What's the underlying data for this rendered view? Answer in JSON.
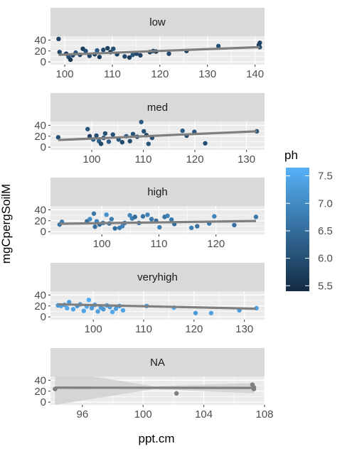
{
  "chart_data": {
    "type": "scatter",
    "xlabel": "ppt.cm",
    "ylabel": "mgCpergSoilM",
    "legend": {
      "title": "ph",
      "position": "right",
      "range": [
        5.4,
        7.65
      ],
      "ticks": [
        "7.5",
        "7.0",
        "6.5",
        "6.0",
        "5.5"
      ],
      "tick_values": [
        7.5,
        7.0,
        6.5,
        6.0,
        5.5
      ],
      "low_color": "#132B43",
      "high_color": "#56B1F7"
    },
    "colors": {
      "panel_background": "#EBEBEB",
      "strip_background": "#D9D9D9",
      "grid": "#FFFFFF",
      "trend_line": "#7F7F7F",
      "ribbon": "#D0D0D0",
      "na_point": "#7F7F7F"
    },
    "ylim": [
      -5,
      47
    ],
    "y_ticks": [
      "0",
      "20",
      "40"
    ],
    "y_tick_values": [
      0,
      20,
      40
    ],
    "facets": [
      {
        "strip": "low",
        "xlim": [
          97,
          142
        ],
        "x_ticks": [
          "100",
          "110",
          "120",
          "130",
          "140"
        ],
        "x_tick_values": [
          100,
          110,
          120,
          130,
          140
        ],
        "trend": {
          "x": [
            98.7,
            141
          ],
          "y": [
            13,
            27
          ]
        },
        "points": [
          {
            "x": 98.7,
            "y": 42,
            "ph": 5.8
          },
          {
            "x": 98.9,
            "y": 18,
            "ph": 5.9
          },
          {
            "x": 100.3,
            "y": 15,
            "ph": 5.7
          },
          {
            "x": 100.8,
            "y": 9,
            "ph": 6.0
          },
          {
            "x": 101.2,
            "y": 4,
            "ph": 5.6
          },
          {
            "x": 101.7,
            "y": 12,
            "ph": 5.9
          },
          {
            "x": 102.3,
            "y": 17,
            "ph": 6.1
          },
          {
            "x": 103.2,
            "y": 13,
            "ph": 5.8
          },
          {
            "x": 103.8,
            "y": 24,
            "ph": 5.7
          },
          {
            "x": 104.4,
            "y": 20,
            "ph": 6.0
          },
          {
            "x": 105.2,
            "y": 11,
            "ph": 5.9
          },
          {
            "x": 106.3,
            "y": 14,
            "ph": 5.8
          },
          {
            "x": 106.8,
            "y": 21,
            "ph": 6.2
          },
          {
            "x": 107.3,
            "y": 9,
            "ph": 5.7
          },
          {
            "x": 108.1,
            "y": 22,
            "ph": 5.9
          },
          {
            "x": 109.0,
            "y": 25,
            "ph": 5.8
          },
          {
            "x": 109.6,
            "y": 18,
            "ph": 5.6
          },
          {
            "x": 110.2,
            "y": 24,
            "ph": 6.0
          },
          {
            "x": 111.0,
            "y": 14,
            "ph": 5.8
          },
          {
            "x": 112.6,
            "y": 10,
            "ph": 5.9
          },
          {
            "x": 113.6,
            "y": 8,
            "ph": 5.7
          },
          {
            "x": 114.3,
            "y": 13,
            "ph": 6.1
          },
          {
            "x": 115.1,
            "y": 15,
            "ph": 5.9
          },
          {
            "x": 115.9,
            "y": 12,
            "ph": 5.8
          },
          {
            "x": 117.9,
            "y": 18,
            "ph": 5.7
          },
          {
            "x": 118.6,
            "y": 20,
            "ph": 6.0
          },
          {
            "x": 119.2,
            "y": 19,
            "ph": 5.6
          },
          {
            "x": 121.9,
            "y": 15,
            "ph": 5.9
          },
          {
            "x": 125.6,
            "y": 20,
            "ph": 5.8
          },
          {
            "x": 132.3,
            "y": 29,
            "ph": 6.0
          },
          {
            "x": 140.8,
            "y": 31,
            "ph": 5.7
          },
          {
            "x": 141.0,
            "y": 35,
            "ph": 5.8
          },
          {
            "x": 141.0,
            "y": 27,
            "ph": 5.9
          }
        ]
      },
      {
        "strip": "med",
        "xlim": [
          92,
          133.5
        ],
        "x_ticks": [
          "100",
          "110",
          "120",
          "130"
        ],
        "x_tick_values": [
          100,
          110,
          120,
          130
        ],
        "trend": {
          "x": [
            93.5,
            132
          ],
          "y": [
            13,
            29
          ]
        },
        "points": [
          {
            "x": 93.5,
            "y": 18,
            "ph": 6.0
          },
          {
            "x": 99.2,
            "y": 33,
            "ph": 6.1
          },
          {
            "x": 99.6,
            "y": 20,
            "ph": 5.8
          },
          {
            "x": 100.3,
            "y": 14,
            "ph": 6.2
          },
          {
            "x": 100.9,
            "y": 21,
            "ph": 6.0
          },
          {
            "x": 101.4,
            "y": 11,
            "ph": 6.3
          },
          {
            "x": 101.8,
            "y": 6,
            "ph": 5.9
          },
          {
            "x": 102.3,
            "y": 17,
            "ph": 6.1
          },
          {
            "x": 102.6,
            "y": 25,
            "ph": 6.0
          },
          {
            "x": 103.3,
            "y": 10,
            "ph": 6.2
          },
          {
            "x": 104.1,
            "y": 23,
            "ph": 6.0
          },
          {
            "x": 105.2,
            "y": 14,
            "ph": 6.1
          },
          {
            "x": 105.9,
            "y": 9,
            "ph": 5.9
          },
          {
            "x": 106.7,
            "y": 20,
            "ph": 6.2
          },
          {
            "x": 107.4,
            "y": 11,
            "ph": 6.0
          },
          {
            "x": 108.0,
            "y": 24,
            "ph": 6.1
          },
          {
            "x": 108.8,
            "y": 19,
            "ph": 6.0
          },
          {
            "x": 109.6,
            "y": 46,
            "ph": 6.2
          },
          {
            "x": 110.1,
            "y": 29,
            "ph": 6.0
          },
          {
            "x": 110.6,
            "y": 22,
            "ph": 5.9
          },
          {
            "x": 111.0,
            "y": 6,
            "ph": 6.1
          },
          {
            "x": 111.7,
            "y": 17,
            "ph": 6.0
          },
          {
            "x": 117.6,
            "y": 30,
            "ph": 6.2
          },
          {
            "x": 118.4,
            "y": 21,
            "ph": 6.0
          },
          {
            "x": 119.9,
            "y": 28,
            "ph": 6.1
          },
          {
            "x": 122.0,
            "y": 7,
            "ph": 6.0
          },
          {
            "x": 132.0,
            "y": 29,
            "ph": 6.1
          }
        ]
      },
      {
        "strip": "high",
        "xlim": [
          91,
          128.5
        ],
        "x_ticks": [
          "100",
          "110",
          "120"
        ],
        "x_tick_values": [
          100,
          110,
          120
        ],
        "trend": {
          "x": [
            92.6,
            127
          ],
          "y": [
            14.5,
            19.5
          ]
        },
        "points": [
          {
            "x": 92.6,
            "y": 13,
            "ph": 6.6
          },
          {
            "x": 93.0,
            "y": 18,
            "ph": 6.8
          },
          {
            "x": 97.4,
            "y": 19,
            "ph": 6.5
          },
          {
            "x": 97.9,
            "y": 23,
            "ph": 7.0
          },
          {
            "x": 98.6,
            "y": 33,
            "ph": 6.7
          },
          {
            "x": 98.8,
            "y": 9,
            "ph": 6.6
          },
          {
            "x": 99.1,
            "y": 19,
            "ph": 6.9
          },
          {
            "x": 99.6,
            "y": 13,
            "ph": 6.5
          },
          {
            "x": 100.2,
            "y": 16,
            "ph": 6.7
          },
          {
            "x": 100.8,
            "y": 31,
            "ph": 7.1
          },
          {
            "x": 101.3,
            "y": 15,
            "ph": 6.6
          },
          {
            "x": 101.7,
            "y": 23,
            "ph": 6.8
          },
          {
            "x": 102.3,
            "y": 6,
            "ph": 6.5
          },
          {
            "x": 103.1,
            "y": 7,
            "ph": 6.7
          },
          {
            "x": 103.6,
            "y": 10,
            "ph": 6.9
          },
          {
            "x": 104.0,
            "y": 16,
            "ph": 6.6
          },
          {
            "x": 104.9,
            "y": 30,
            "ph": 7.0
          },
          {
            "x": 105.3,
            "y": 24,
            "ph": 6.8
          },
          {
            "x": 105.8,
            "y": 27,
            "ph": 6.5
          },
          {
            "x": 106.5,
            "y": 16,
            "ph": 6.7
          },
          {
            "x": 107.2,
            "y": 28,
            "ph": 6.6
          },
          {
            "x": 108.0,
            "y": 31,
            "ph": 6.9
          },
          {
            "x": 108.7,
            "y": 23,
            "ph": 6.7
          },
          {
            "x": 109.5,
            "y": 20,
            "ph": 6.5
          },
          {
            "x": 110.1,
            "y": 8,
            "ph": 6.8
          },
          {
            "x": 111.0,
            "y": 27,
            "ph": 6.6
          },
          {
            "x": 111.5,
            "y": 29,
            "ph": 6.9
          },
          {
            "x": 112.2,
            "y": 22,
            "ph": 6.7
          },
          {
            "x": 112.7,
            "y": 14,
            "ph": 6.5
          },
          {
            "x": 115.7,
            "y": 7,
            "ph": 6.8
          },
          {
            "x": 116.7,
            "y": 10,
            "ph": 6.6
          },
          {
            "x": 118.8,
            "y": 15,
            "ph": 6.7
          },
          {
            "x": 119.7,
            "y": 28,
            "ph": 6.9
          },
          {
            "x": 123.2,
            "y": 12,
            "ph": 6.6
          },
          {
            "x": 127.0,
            "y": 27,
            "ph": 6.7
          }
        ]
      },
      {
        "strip": "veryhigh",
        "xlim": [
          91.5,
          134
        ],
        "x_ticks": [
          "100",
          "110",
          "120",
          "130"
        ],
        "x_tick_values": [
          100,
          110,
          120,
          130
        ],
        "trend": {
          "x": [
            93,
            132.3
          ],
          "y": [
            23,
            15
          ]
        },
        "points": [
          {
            "x": 93.0,
            "y": 21,
            "ph": 7.2
          },
          {
            "x": 93.6,
            "y": 20,
            "ph": 7.4
          },
          {
            "x": 94.3,
            "y": 22,
            "ph": 7.3
          },
          {
            "x": 94.8,
            "y": 16,
            "ph": 7.5
          },
          {
            "x": 95.2,
            "y": 27,
            "ph": 7.3
          },
          {
            "x": 96.0,
            "y": 14,
            "ph": 7.4
          },
          {
            "x": 96.8,
            "y": 20,
            "ph": 7.2
          },
          {
            "x": 97.4,
            "y": 23,
            "ph": 7.3
          },
          {
            "x": 98.1,
            "y": 11,
            "ph": 7.4
          },
          {
            "x": 98.7,
            "y": 19,
            "ph": 7.5
          },
          {
            "x": 99.1,
            "y": 31,
            "ph": 7.6
          },
          {
            "x": 99.7,
            "y": 16,
            "ph": 7.3
          },
          {
            "x": 100.3,
            "y": 22,
            "ph": 7.2
          },
          {
            "x": 100.9,
            "y": 10,
            "ph": 7.4
          },
          {
            "x": 101.5,
            "y": 17,
            "ph": 7.3
          },
          {
            "x": 102.0,
            "y": 14,
            "ph": 7.2
          },
          {
            "x": 102.7,
            "y": 21,
            "ph": 7.4
          },
          {
            "x": 103.3,
            "y": 18,
            "ph": 7.3
          },
          {
            "x": 103.8,
            "y": 9,
            "ph": 7.5
          },
          {
            "x": 104.5,
            "y": 15,
            "ph": 7.3
          },
          {
            "x": 105.2,
            "y": 20,
            "ph": 7.2
          },
          {
            "x": 105.9,
            "y": 12,
            "ph": 7.4
          },
          {
            "x": 110.6,
            "y": 20,
            "ph": 7.3
          },
          {
            "x": 116.0,
            "y": 17,
            "ph": 7.5
          },
          {
            "x": 120.3,
            "y": 7,
            "ph": 7.3
          },
          {
            "x": 123.4,
            "y": 7,
            "ph": 7.4
          },
          {
            "x": 129.0,
            "y": 12,
            "ph": 7.3
          },
          {
            "x": 132.4,
            "y": 16,
            "ph": 7.4
          }
        ]
      },
      {
        "strip": "NA",
        "xlim": [
          93.9,
          108
        ],
        "x_ticks": [
          "96",
          "100",
          "104",
          "108"
        ],
        "x_tick_values": [
          96,
          100,
          104,
          108
        ],
        "trend": {
          "x": [
            94.2,
            107.3
          ],
          "y": [
            26.5,
            26
          ]
        },
        "ribbon": {
          "x": [
            94.2,
            100.7,
            107.3
          ],
          "upper": [
            58,
            29,
            35
          ],
          "lower": [
            -5,
            24,
            16
          ]
        },
        "points": [
          {
            "x": 94.2,
            "y": 24
          },
          {
            "x": 102.2,
            "y": 16
          },
          {
            "x": 107.2,
            "y": 32
          },
          {
            "x": 107.3,
            "y": 27
          },
          {
            "x": 107.3,
            "y": 24
          }
        ]
      }
    ]
  }
}
